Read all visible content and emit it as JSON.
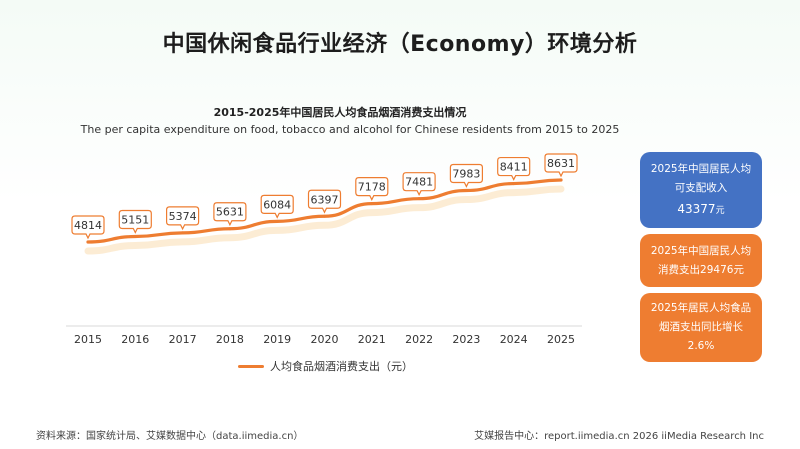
{
  "page": {
    "title": "中国休闲食品行业经济（Economy）环境分析"
  },
  "chart_data": {
    "type": "line",
    "title": "2015-2025年中国居民人均食品烟酒消费支出情况",
    "subtitle": "The per capita expenditure on food, tobacco and alcohol for Chinese residents from 2015 to 2025",
    "x": [
      "2015",
      "2016",
      "2017",
      "2018",
      "2019",
      "2020",
      "2021",
      "2022",
      "2023",
      "2024",
      "2025"
    ],
    "series": [
      {
        "name": "人均食品烟酒消费支出（元）",
        "values": [
          4814,
          5151,
          5374,
          5631,
          6084,
          6397,
          7178,
          7481,
          7983,
          8411,
          8631
        ]
      }
    ],
    "colors": {
      "line": "#ee7d31",
      "label_border": "#ee7d31",
      "axis": "#d9d9d9"
    },
    "grid": false,
    "legend_position": "bottom-left",
    "data_labels": true
  },
  "cards": {
    "income": {
      "line1": "2025年中国居民人均",
      "line2": "可支配收入",
      "value": "43377",
      "unit": "元",
      "color": "#4472c4"
    },
    "consumption": {
      "line1": "2025年中国居民人均",
      "line2": "消费支出29476元",
      "color": "#ee7d31"
    },
    "growth": {
      "line1": "2025年居民人均食品",
      "line2": "烟酒支出同比增长",
      "line3": "2.6%",
      "color": "#ee7d31"
    }
  },
  "footer": {
    "source": "资料来源：国家统计局、艾媒数据中心（data.iimedia.cn）",
    "credit": "艾媒报告中心：report.iimedia.cn   2026 iiMedia Research Inc"
  }
}
